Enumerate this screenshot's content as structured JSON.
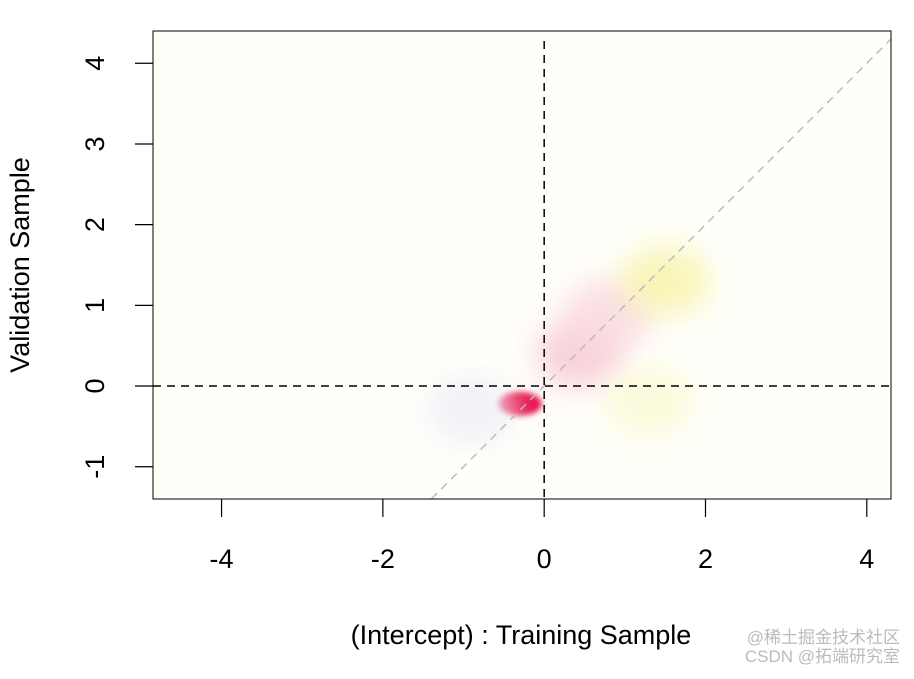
{
  "chart_data": {
    "type": "density2d",
    "xlabel": "(Intercept) : Training Sample",
    "ylabel": "Validation Sample",
    "x": [
      -0.3,
      0.45,
      0.8,
      1.5,
      1.3,
      -0.9
    ],
    "y": [
      -0.22,
      0.4,
      0.9,
      1.3,
      -0.2,
      -0.3
    ],
    "colors": [
      "#e8003d",
      "#f7c7d4",
      "#fad8e0",
      "#f7f3a8",
      "#fbf9d4",
      "#eeeef8"
    ],
    "background": "#fffffa",
    "xlim": [
      -4.85,
      4.3
    ],
    "ylim": [
      -1.4,
      4.4
    ],
    "xticks": [
      -4,
      -2,
      0,
      2,
      4
    ],
    "yticks": [
      -1,
      0,
      1,
      2,
      3,
      4
    ],
    "vlines": [
      0
    ],
    "hlines": [
      0
    ],
    "diagonal": true,
    "watermark": [
      "@稀土掘金技术社区",
      "CSDN @拓端研究室"
    ]
  }
}
